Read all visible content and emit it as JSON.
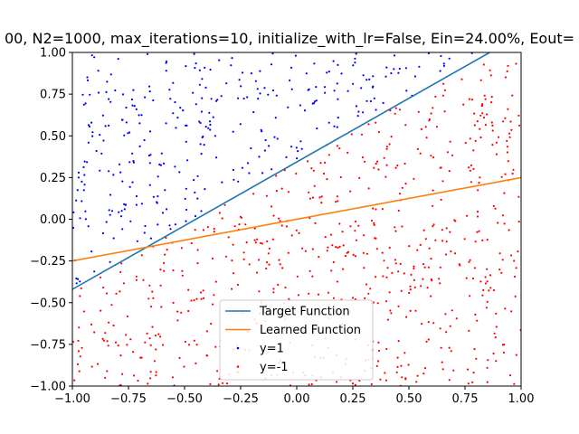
{
  "chart_data": {
    "type": "scatter",
    "title": "00, N2=1000, max_iterations=10, initialize_with_lr=False, Ein=24.00%, Eout=",
    "xlabel": "",
    "ylabel": "",
    "xlim": [
      -1.0,
      1.0
    ],
    "ylim": [
      -1.0,
      1.0
    ],
    "x_ticks": [
      "−1.00",
      "−0.75",
      "−0.50",
      "−0.25",
      "0.00",
      "0.25",
      "0.50",
      "0.75",
      "1.00"
    ],
    "y_ticks": [
      "−1.00",
      "−0.75",
      "−0.50",
      "−0.25",
      "0.00",
      "0.25",
      "0.50",
      "0.75",
      "1.00"
    ],
    "grid": false,
    "legend_position": "bottom-center",
    "lines": [
      {
        "name": "Target Function",
        "color": "#1f77b4",
        "x": [
          -1.0,
          0.86
        ],
        "y": [
          -0.42,
          1.0
        ]
      },
      {
        "name": "Learned Function",
        "color": "#ff7f0e",
        "x": [
          -1.0,
          1.0
        ],
        "y": [
          -0.25,
          0.25
        ]
      }
    ],
    "scatter_series": [
      {
        "name": "y=1",
        "color": "#0000ff",
        "class_above_target": true
      },
      {
        "name": "y=-1",
        "color": "#ff0000",
        "class_above_target": false
      }
    ],
    "point_count": 1000
  }
}
